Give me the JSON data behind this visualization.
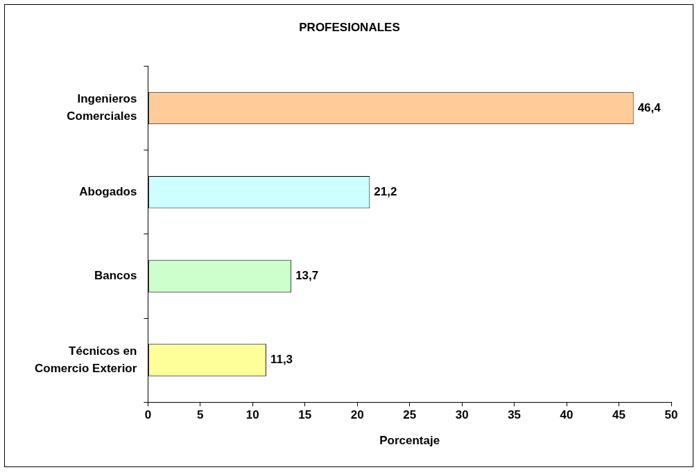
{
  "chart_data": {
    "type": "bar",
    "orientation": "horizontal",
    "title": "PROFESIONALES",
    "xlabel": "Porcentaje",
    "categories": [
      "Ingenieros Comerciales",
      "Abogados",
      "Bancos",
      "Técnicos en Comercio Exterior"
    ],
    "values": [
      46.4,
      21.2,
      13.7,
      11.3
    ],
    "colors": [
      "#ffcc99",
      "#ccffff",
      "#ccffcc",
      "#ffff99"
    ],
    "value_labels": [
      "46,4",
      "21,2",
      "13,7",
      "11,3"
    ],
    "xlim": [
      0,
      50
    ],
    "xticks": [
      0,
      5,
      10,
      15,
      20,
      25,
      30,
      35,
      40,
      45,
      50
    ],
    "grid": false,
    "legend": false
  }
}
